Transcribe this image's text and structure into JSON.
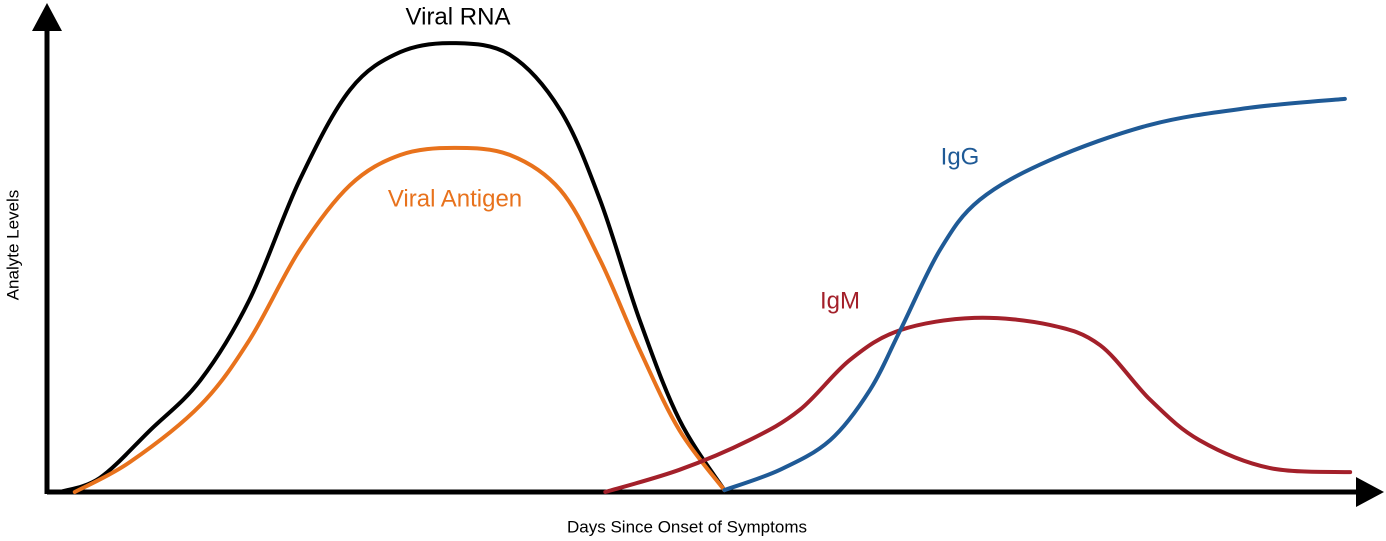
{
  "chart_data": {
    "type": "line",
    "x_label": "Days Since Onset of Symptoms",
    "y_label": "Analyte Levels",
    "xlim": [
      0,
      100
    ],
    "ylim": [
      0,
      100
    ],
    "series": [
      {
        "name": "Viral RNA",
        "color": "#000000",
        "x": [
          1.0,
          4.0,
          7.8,
          11.6,
          15.3,
          19.1,
          22.9,
          26.7,
          30.8,
          35.0,
          38.8,
          41.8,
          44.8,
          47.8,
          51.2
        ],
        "values": [
          0,
          3.0,
          13.1,
          23.7,
          40.7,
          66.1,
          85.2,
          93.2,
          95.1,
          92.6,
          80.9,
          61.9,
          36.4,
          15.3,
          0.4
        ]
      },
      {
        "name": "Viral Antigen",
        "color": "#e8721c",
        "x": [
          2.1,
          6.3,
          11.6,
          15.3,
          19.1,
          22.9,
          26.7,
          30.8,
          35.0,
          38.8,
          41.8,
          44.8,
          47.8,
          51.2
        ],
        "values": [
          0,
          6.4,
          18.4,
          32.2,
          51.3,
          65.0,
          71.4,
          72.9,
          71.4,
          64.0,
          49.2,
          30.1,
          13.1,
          0.4
        ]
      },
      {
        "name": "IgM",
        "color": "#a3202a",
        "x": [
          42.2,
          47.8,
          53.1,
          56.9,
          60.7,
          64.5,
          70.1,
          75.8,
          79.6,
          83.4,
          87.1,
          92.4,
          98.5
        ],
        "values": [
          0,
          4.7,
          11.0,
          17.4,
          28.0,
          34.3,
          36.9,
          35.4,
          31.1,
          19.5,
          11.0,
          5.1,
          4.2
        ]
      },
      {
        "name": "IgG",
        "color": "#1f5a96",
        "x": [
          51.2,
          55.4,
          59.2,
          62.2,
          64.5,
          67.5,
          70.5,
          75.8,
          83.4,
          90.9,
          98.1
        ],
        "values": [
          0.4,
          4.7,
          11.0,
          21.6,
          34.3,
          51.3,
          61.9,
          70.3,
          77.8,
          81.4,
          83.3
        ]
      }
    ]
  }
}
